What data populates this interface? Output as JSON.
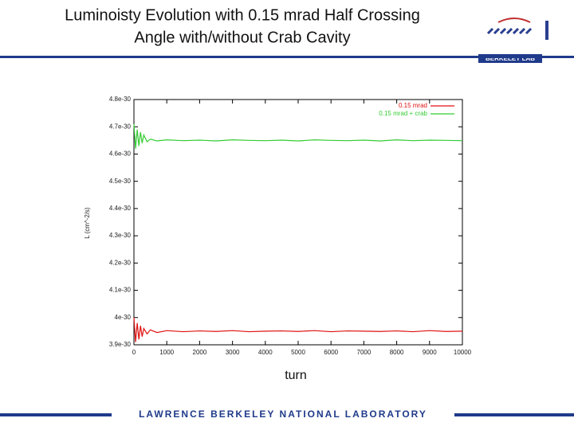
{
  "header": {
    "title_lines": [
      "Luminoisty Evolution with 0.15 mrad Half Crossing",
      "Angle with/without Crab Cavity"
    ],
    "logo": "BERKELEY LAB"
  },
  "chart_data": {
    "type": "line",
    "x_label": "turn",
    "y_label": "L (cm^-2/s)",
    "x": [
      0,
      50,
      100,
      150,
      200,
      250,
      300,
      400,
      500,
      700,
      1000,
      1500,
      2000,
      2500,
      3000,
      3500,
      4000,
      4500,
      5000,
      5500,
      6000,
      6500,
      7000,
      7500,
      8000,
      8500,
      9000,
      9500,
      10000
    ],
    "series": [
      {
        "name": "0.15 mrad",
        "color": "#e01010",
        "values": [
          4e-30,
          3.91e-30,
          3.98e-30,
          3.92e-30,
          3.97e-30,
          3.93e-30,
          3.96e-30,
          3.94e-30,
          3.955e-30,
          3.945e-30,
          3.952e-30,
          3.948e-30,
          3.951e-30,
          3.949e-30,
          3.952e-30,
          3.948e-30,
          3.95e-30,
          3.951e-30,
          3.949e-30,
          3.952e-30,
          3.948e-30,
          3.951e-30,
          3.95e-30,
          3.949e-30,
          3.951e-30,
          3.948e-30,
          3.952e-30,
          3.949e-30,
          3.95e-30
        ]
      },
      {
        "name": "0.15 mrad + crab",
        "color": "#33cc33",
        "values": [
          4.71e-30,
          4.62e-30,
          4.69e-30,
          4.63e-30,
          4.68e-30,
          4.64e-30,
          4.67e-30,
          4.645e-30,
          4.655e-30,
          4.648e-30,
          4.652e-30,
          4.649e-30,
          4.651e-30,
          4.648e-30,
          4.652e-30,
          4.65e-30,
          4.649e-30,
          4.651e-30,
          4.648e-30,
          4.652e-30,
          4.65e-30,
          4.649e-30,
          4.651e-30,
          4.648e-30,
          4.652e-30,
          4.649e-30,
          4.651e-30,
          4.65e-30,
          4.649e-30
        ]
      }
    ],
    "xlim": [
      0,
      10000
    ],
    "xticks": [
      0,
      1000,
      2000,
      3000,
      4000,
      5000,
      6000,
      7000,
      8000,
      9000,
      10000
    ],
    "ylim": [
      3.9e-30,
      4.8e-30
    ],
    "yticks": [
      4.8e-30,
      4.7e-30,
      4.6e-30,
      4.5e-30,
      4.4e-30,
      4.3e-30,
      4.2e-30,
      4.1e-30,
      4e-30,
      3.9e-30
    ],
    "grid": false,
    "legend": "top-right"
  },
  "footer": "LAWRENCE BERKELEY NATIONAL LABORATORY"
}
